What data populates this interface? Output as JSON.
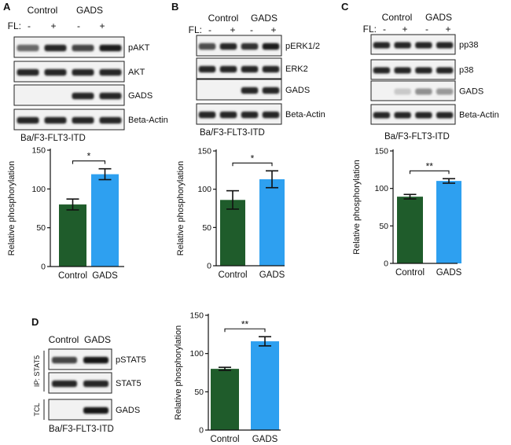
{
  "colors": {
    "control": "#1f5c2b",
    "gads": "#2ea0f0"
  },
  "panels": [
    {
      "id": "A",
      "label": "A",
      "header": {
        "control": "Control",
        "gads": "GADS",
        "fl": "FL:",
        "signs": [
          "-",
          "+",
          "-",
          "+"
        ]
      },
      "blots": [
        {
          "label": "pAKT",
          "pattern": "pakt"
        },
        {
          "label": "AKT",
          "pattern": "even"
        },
        {
          "label": "GADS",
          "pattern": "gads"
        },
        {
          "label": "Beta-Actin",
          "pattern": "even"
        }
      ],
      "caption": "Ba/F3-FLT3-ITD"
    },
    {
      "id": "B",
      "label": "B",
      "header": {
        "control": "Control",
        "gads": "GADS",
        "fl": "FL:",
        "signs": [
          "-",
          "+",
          "-",
          "+"
        ]
      },
      "blots": [
        {
          "label": "pERK1/2",
          "pattern": "perk"
        },
        {
          "label": "ERK2",
          "pattern": "even"
        },
        {
          "label": "GADS",
          "pattern": "gads"
        },
        {
          "label": "Beta-Actin",
          "pattern": "even"
        }
      ],
      "caption": "Ba/F3-FLT3-ITD"
    },
    {
      "id": "C",
      "label": "C",
      "header": {
        "control": "Control",
        "gads": "GADS",
        "fl": "FL:",
        "signs": [
          "-",
          "+",
          "-",
          "+"
        ]
      },
      "blots": [
        {
          "label": "pp38",
          "pattern": "even"
        },
        {
          "label": "p38",
          "pattern": "even"
        },
        {
          "label": "GADS",
          "pattern": "gadsweak"
        },
        {
          "label": "Beta-Actin",
          "pattern": "even"
        }
      ],
      "caption": "Ba/F3-FLT3-ITD"
    },
    {
      "id": "D",
      "label": "D",
      "header": {
        "control": "Control",
        "gads": "GADS"
      },
      "side_labels": [
        "IP: STAT5",
        "TCL"
      ],
      "blots": [
        {
          "label": "pSTAT5",
          "pattern": "d_pstat5"
        },
        {
          "label": "STAT5",
          "pattern": "d_even"
        },
        {
          "label": "GADS",
          "pattern": "d_gads"
        }
      ],
      "caption": "Ba/F3-FLT3-ITD"
    }
  ],
  "chart_data": [
    {
      "panel": "A",
      "type": "bar",
      "categories": [
        "Control",
        "GADS"
      ],
      "values": [
        80,
        119
      ],
      "errors": [
        7,
        7
      ],
      "ylabel": "Relative phosphorylation",
      "ylim": [
        0,
        150
      ],
      "yticks": [
        0,
        50,
        100,
        150
      ],
      "significance": "*",
      "xlabel": "",
      "title": ""
    },
    {
      "panel": "B",
      "type": "bar",
      "categories": [
        "Control",
        "GADS"
      ],
      "values": [
        86,
        113
      ],
      "errors": [
        12,
        11
      ],
      "ylabel": "Relative phosphorylation",
      "ylim": [
        0,
        150
      ],
      "yticks": [
        0,
        50,
        100,
        150
      ],
      "significance": "*",
      "xlabel": "",
      "title": ""
    },
    {
      "panel": "C",
      "type": "bar",
      "categories": [
        "Control",
        "GADS"
      ],
      "values": [
        89,
        110
      ],
      "errors": [
        3,
        3
      ],
      "ylabel": "Relative phosphorylation",
      "ylim": [
        0,
        150
      ],
      "yticks": [
        0,
        50,
        100,
        150
      ],
      "significance": "**",
      "xlabel": "",
      "title": ""
    },
    {
      "panel": "D",
      "type": "bar",
      "categories": [
        "Control",
        "GADS"
      ],
      "values": [
        80,
        116
      ],
      "errors": [
        2,
        6
      ],
      "ylabel": "Relative phosphorylation",
      "ylim": [
        0,
        150
      ],
      "yticks": [
        0,
        50,
        100,
        150
      ],
      "significance": "**",
      "xlabel": "",
      "title": ""
    }
  ]
}
